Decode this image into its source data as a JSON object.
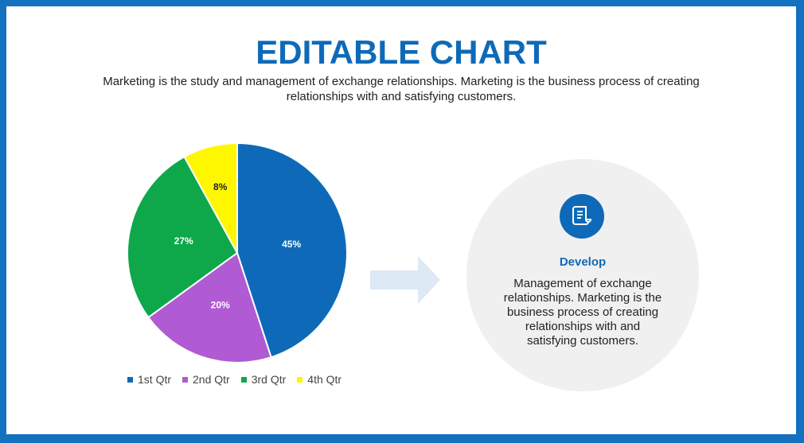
{
  "slide": {
    "title": "EDITABLE CHART",
    "subtitle": "Marketing is the study and management of exchange relationships. Marketing is the business process of creating relationships with and satisfying customers."
  },
  "chart_data": {
    "type": "pie",
    "categories": [
      "1st Qtr",
      "2nd Qtr",
      "3rd Qtr",
      "4th Qtr"
    ],
    "values": [
      45,
      20,
      27,
      8
    ],
    "labels": [
      "45%",
      "20%",
      "27%",
      "8%"
    ],
    "colors": [
      "#0e6ab8",
      "#b05ad4",
      "#0ea84a",
      "#fff700"
    ],
    "legend": "bottom"
  },
  "callout": {
    "icon": "document-scroll-icon",
    "heading": "Develop",
    "body": "Management of exchange relationships. Marketing is the business process of creating relationships with and satisfying customers."
  },
  "colors": {
    "border": "#1371c0",
    "accent": "#0e6ab8",
    "circle_bg": "#f0f0f0",
    "arrow": "#dde9f5"
  }
}
